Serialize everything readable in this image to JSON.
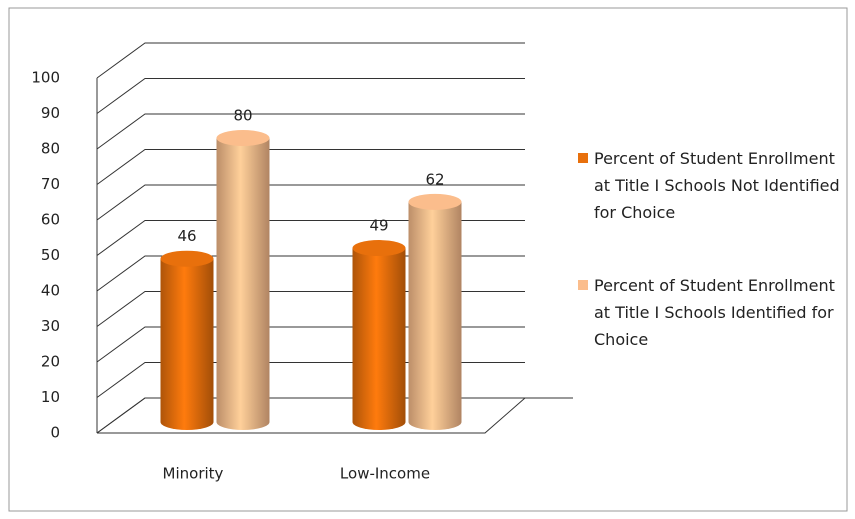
{
  "chart_data": {
    "type": "bar3d",
    "categories": [
      "Minority",
      "Low-Income"
    ],
    "series": [
      {
        "name": "Percent of Student Enrollment at Title I Schools Not Identified for Choice",
        "color": "#e8700c",
        "values": [
          46,
          49
        ]
      },
      {
        "name": "Percent of Student Enrollment at Title I Schools Identified for Choice",
        "color": "#fbbd8c",
        "values": [
          80,
          62
        ]
      }
    ],
    "ylim": [
      0,
      100
    ],
    "yticks": [
      0,
      10,
      20,
      30,
      40,
      50,
      60,
      70,
      80,
      90,
      100
    ],
    "grid": true,
    "legend": "right"
  }
}
